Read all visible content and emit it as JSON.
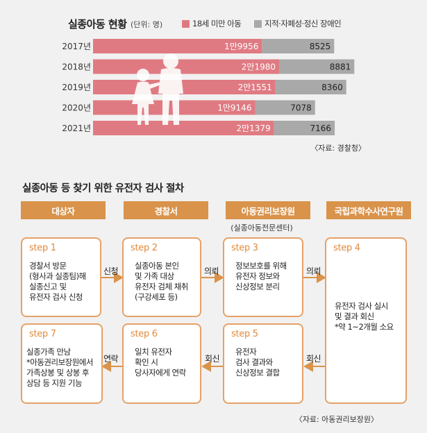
{
  "chart": {
    "title": "실종아동 현황",
    "unit": "(단위: 명)",
    "legend": [
      "18세 미만 아동",
      "지적·자폐성·정신 장애인"
    ],
    "source": "〈자료: 경찰청〉"
  },
  "chart_data": {
    "type": "bar",
    "orientation": "horizontal-stacked",
    "categories": [
      "2017년",
      "2018년",
      "2019년",
      "2020년",
      "2021년"
    ],
    "series": [
      {
        "name": "18세 미만 아동",
        "values": [
          19956,
          21980,
          21551,
          19146,
          21379
        ],
        "labels": [
          "1만9956",
          "2만1980",
          "2만1551",
          "1만9146",
          "2만1379"
        ],
        "color": "#e07a82"
      },
      {
        "name": "지적·자폐성·정신 장애인",
        "values": [
          8525,
          8881,
          8360,
          7078,
          7166
        ],
        "labels": [
          "8525",
          "8881",
          "8360",
          "7078",
          "7166"
        ],
        "color": "#a9a9a9"
      }
    ],
    "title": "실종아동 현황"
  },
  "procedure": {
    "title": "실종아동 등 찾기 위한 유전자 검사 절차",
    "headers": [
      "대상자",
      "경찰서",
      "아동권리보장원",
      "국립과학수사연구원"
    ],
    "agency_sub": "(실종아동전문센터)",
    "steps": {
      "s1": {
        "label": "step 1",
        "text": "경찰서 방문\n(형사과 실종팀)해\n실종신고 및\n유전자 검사 신청"
      },
      "s2": {
        "label": "step 2",
        "text": "실종아동 본인\n및 가족 대상\n유전자 검체 채취\n(구강세포 등)"
      },
      "s3": {
        "label": "step 3",
        "text": "정보보호를 위해\n유전자 정보와\n신상정보 분리"
      },
      "s4": {
        "label": "step 4",
        "text": "유전자 검사 실시\n및 결과 회신\n*약 1~2개월 소요"
      },
      "s5": {
        "label": "step 5",
        "text": "유전자\n검사 결과와\n신상정보 결합"
      },
      "s6": {
        "label": "step 6",
        "text": "일치 유전자\n확인 시\n당사자에게 연락"
      },
      "s7": {
        "label": "step 7",
        "text": "실종가족 만남\n*아동권리보장원에서\n가족상봉 및 상봉 후\n상담 등 지원 기능"
      }
    },
    "arrows": {
      "a12": "신청",
      "a23": "의뢰",
      "a34": "의뢰",
      "a45": "회신",
      "a56": "회신",
      "a67": "연락"
    },
    "source": "〈자료: 아동권리보장원〉"
  },
  "colors": {
    "accent": "#d9934a",
    "child_bar": "#e07a82",
    "disabled_bar": "#a9a9a9"
  }
}
